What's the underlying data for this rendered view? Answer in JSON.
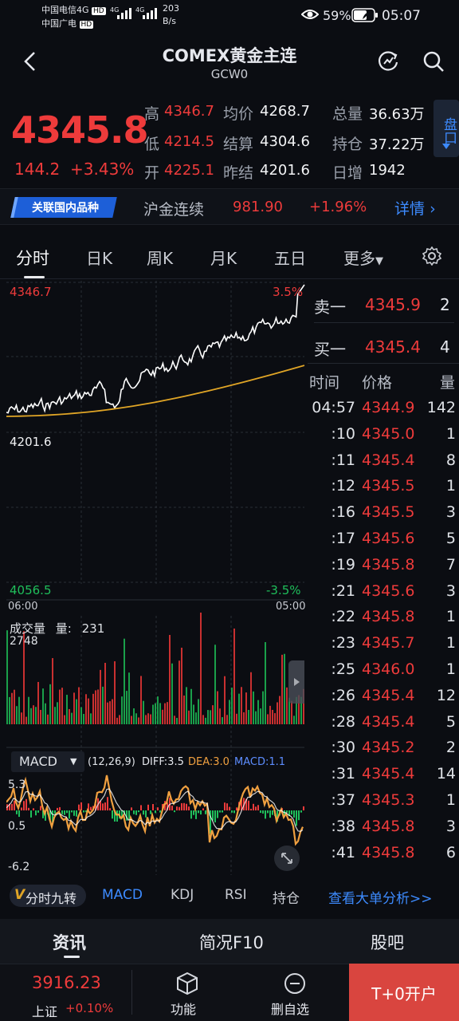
{
  "status": {
    "carrier1": "中国电信4G",
    "carrier2": "中国广电",
    "hd1": "HD",
    "hd2": "HD",
    "net1": "4G",
    "net2": "4G",
    "speed": "203",
    "speed_unit": "B/s",
    "battery": "59%",
    "time": "05:07"
  },
  "header": {
    "title": "COMEX黄金主连",
    "code": "GCW0"
  },
  "quote": {
    "price": "4345.8",
    "change": "144.2",
    "change_pct": "+3.43%",
    "high_label": "高",
    "high": "4346.7",
    "low_label": "低",
    "low": "4214.5",
    "open_label": "开",
    "open": "4225.1",
    "avg_label": "均价",
    "avg": "4268.7",
    "settle_label": "结算",
    "settle": "4304.6",
    "prev_settle_label": "昨结",
    "prev_settle": "4201.6",
    "volume_label": "总量",
    "volume": "36.63万",
    "position_label": "持仓",
    "position": "37.22万",
    "daily_add_label": "日增",
    "daily_add": "1942",
    "pankou": "盘口"
  },
  "related": {
    "tag": "关联国内品种",
    "name": "沪金连续",
    "price": "981.90",
    "pct": "+1.96%",
    "detail": "详情"
  },
  "tabs": [
    "分时",
    "日K",
    "周K",
    "月K",
    "五日",
    "更多"
  ],
  "chart": {
    "top_price": "4346.7",
    "top_pct": "3.5%",
    "mid_price": "4201.6",
    "bottom_price": "4056.5",
    "bottom_pct": "-3.5%",
    "time_start": "06:00",
    "time_end": "05:00",
    "vol_label": "成交量",
    "vol_qty_label": "量:",
    "vol_qty": "231",
    "vol_max": "2748",
    "macd_name": "MACD",
    "macd_params": "(12,26,9)",
    "diff": "DIFF:3.5",
    "dea": "DEA:3.0",
    "macd": "MACD:1.1",
    "macd_top": "5.3",
    "macd_mid": "0.5",
    "macd_bottom": "-6.2"
  },
  "orderbook": {
    "sell_label": "卖一",
    "sell_price": "4345.9",
    "sell_qty": "2",
    "buy_label": "买一",
    "buy_price": "4345.4",
    "buy_qty": "4",
    "col_time": "时间",
    "col_price": "价格",
    "col_qty": "量"
  },
  "ticks": [
    {
      "t": "04:57",
      "p": "4344.9",
      "v": "142"
    },
    {
      "t": ":10",
      "p": "4345.0",
      "v": "1"
    },
    {
      "t": ":11",
      "p": "4345.4",
      "v": "8"
    },
    {
      "t": ":12",
      "p": "4345.5",
      "v": "1"
    },
    {
      "t": ":16",
      "p": "4345.5",
      "v": "3"
    },
    {
      "t": ":17",
      "p": "4345.6",
      "v": "5"
    },
    {
      "t": ":19",
      "p": "4345.8",
      "v": "7"
    },
    {
      "t": ":21",
      "p": "4345.6",
      "v": "3"
    },
    {
      "t": ":22",
      "p": "4345.8",
      "v": "1"
    },
    {
      "t": ":23",
      "p": "4345.7",
      "v": "1"
    },
    {
      "t": ":25",
      "p": "4346.0",
      "v": "1"
    },
    {
      "t": ":26",
      "p": "4345.4",
      "v": "12"
    },
    {
      "t": ":28",
      "p": "4345.4",
      "v": "5"
    },
    {
      "t": ":30",
      "p": "4345.2",
      "v": "2"
    },
    {
      "t": ":31",
      "p": "4345.4",
      "v": "14"
    },
    {
      "t": ":37",
      "p": "4345.3",
      "v": "1"
    },
    {
      "t": ":38",
      "p": "4345.8",
      "v": "3"
    },
    {
      "t": ":41",
      "p": "4345.8",
      "v": "6"
    }
  ],
  "indicators": {
    "first": "分时九转",
    "items": [
      "MACD",
      "KDJ",
      "RSI",
      "持仓"
    ],
    "analysis": "查看大单分析>>"
  },
  "bottomnav": [
    "资讯",
    "简况F10",
    "股吧"
  ],
  "footer": {
    "index_value": "3916.23",
    "index_name": "上证",
    "index_pct": "+0.10%",
    "func": "功能",
    "del": "删自选",
    "open": "T+0开户"
  },
  "colors": {
    "up": "#ee3b3b",
    "down": "#1fbf5b",
    "accent": "#3d8bff",
    "avg_line": "#e0a526",
    "macd_line": "#f0a040"
  }
}
